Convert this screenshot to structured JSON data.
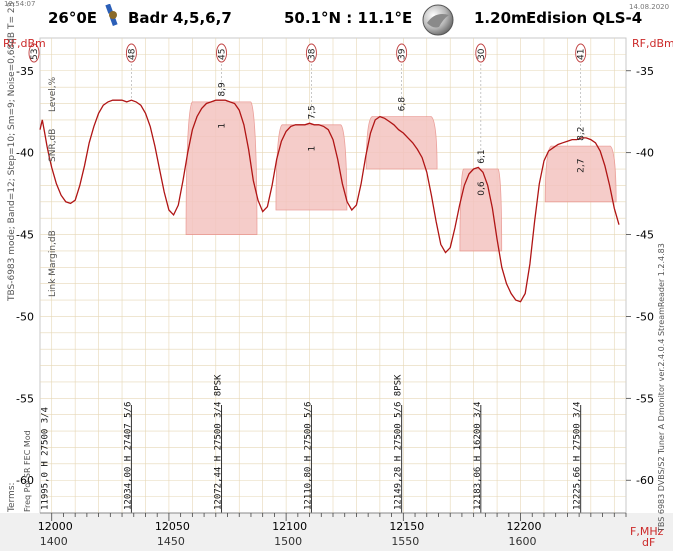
{
  "header": {
    "time": "12:54:07",
    "date": "14.08.2020",
    "orbital_position": "26°0E",
    "satellite_name": "Badr 4,5,6,7",
    "location": "50.1°N : 11.1°E",
    "dish": "1.20m",
    "lnb": "Edision QLS-4"
  },
  "chart_data": {
    "type": "line",
    "ylabel": "RF,dBm",
    "ylabel_right": "RF,dBm",
    "xlabel": "F,MHz",
    "xlabel_secondary": "dF",
    "ylim": [
      -62,
      -33
    ],
    "xlim": [
      11995,
      12245
    ],
    "y_ticks": [
      -35,
      -40,
      -45,
      -50,
      -55,
      -60
    ],
    "x_ticks": [
      12000,
      12050,
      12100,
      12150,
      12200
    ],
    "x_ticks_secondary": [
      "1400",
      "1450",
      "1500",
      "1550",
      "1600"
    ],
    "grid": true,
    "left_axis_labels": {
      "level": "Level,%",
      "snr": "SNR,dB",
      "link_margin": "Link Margin,dB",
      "scan_info": "TBS-6983 mode; Band=12; Step=10; Sm=9; Noise=0,68dB  T= 23 s",
      "terms": "Terms:",
      "columns": "Freq  Pol   SR  FEC  Mod"
    },
    "right_axis_label": "TBS 6983 DVBS/S2 Tuner A    Dmonitor  ver.2.4.0.4    StreamReader 1.2.4.83",
    "spectrum": [
      [
        11995,
        -38.6
      ],
      [
        11996,
        -38.0
      ],
      [
        11997,
        -38.8
      ],
      [
        11998,
        -39.6
      ],
      [
        11999,
        -40.3
      ],
      [
        12000,
        -40.9
      ],
      [
        12002,
        -41.9
      ],
      [
        12004,
        -42.6
      ],
      [
        12006,
        -43.0
      ],
      [
        12008,
        -43.1
      ],
      [
        12010,
        -42.9
      ],
      [
        12012,
        -42.0
      ],
      [
        12014,
        -40.8
      ],
      [
        12016,
        -39.4
      ],
      [
        12018,
        -38.4
      ],
      [
        12020,
        -37.6
      ],
      [
        12022,
        -37.1
      ],
      [
        12024,
        -36.9
      ],
      [
        12026,
        -36.8
      ],
      [
        12028,
        -36.8
      ],
      [
        12030,
        -36.8
      ],
      [
        12032,
        -36.9
      ],
      [
        12034,
        -36.8
      ],
      [
        12036,
        -36.9
      ],
      [
        12038,
        -37.1
      ],
      [
        12040,
        -37.6
      ],
      [
        12042,
        -38.4
      ],
      [
        12044,
        -39.6
      ],
      [
        12046,
        -41.0
      ],
      [
        12048,
        -42.4
      ],
      [
        12050,
        -43.5
      ],
      [
        12052,
        -43.8
      ],
      [
        12054,
        -43.2
      ],
      [
        12056,
        -41.7
      ],
      [
        12058,
        -40.0
      ],
      [
        12060,
        -38.6
      ],
      [
        12062,
        -37.8
      ],
      [
        12064,
        -37.3
      ],
      [
        12066,
        -37.0
      ],
      [
        12068,
        -36.9
      ],
      [
        12070,
        -36.8
      ],
      [
        12072,
        -36.8
      ],
      [
        12074,
        -36.8
      ],
      [
        12076,
        -36.9
      ],
      [
        12078,
        -37.0
      ],
      [
        12080,
        -37.4
      ],
      [
        12082,
        -38.3
      ],
      [
        12084,
        -39.8
      ],
      [
        12086,
        -41.7
      ],
      [
        12088,
        -42.9
      ],
      [
        12090,
        -43.6
      ],
      [
        12092,
        -43.3
      ],
      [
        12094,
        -42.0
      ],
      [
        12096,
        -40.4
      ],
      [
        12098,
        -39.3
      ],
      [
        12100,
        -38.7
      ],
      [
        12102,
        -38.4
      ],
      [
        12104,
        -38.3
      ],
      [
        12106,
        -38.3
      ],
      [
        12108,
        -38.3
      ],
      [
        12110,
        -38.2
      ],
      [
        12112,
        -38.3
      ],
      [
        12114,
        -38.3
      ],
      [
        12116,
        -38.4
      ],
      [
        12118,
        -38.6
      ],
      [
        12120,
        -39.2
      ],
      [
        12122,
        -40.4
      ],
      [
        12124,
        -41.9
      ],
      [
        12126,
        -43.0
      ],
      [
        12128,
        -43.5
      ],
      [
        12130,
        -43.2
      ],
      [
        12132,
        -41.9
      ],
      [
        12134,
        -40.2
      ],
      [
        12136,
        -38.8
      ],
      [
        12138,
        -38.0
      ],
      [
        12140,
        -37.8
      ],
      [
        12142,
        -37.9
      ],
      [
        12144,
        -38.1
      ],
      [
        12146,
        -38.3
      ],
      [
        12148,
        -38.6
      ],
      [
        12150,
        -38.8
      ],
      [
        12152,
        -39.1
      ],
      [
        12154,
        -39.4
      ],
      [
        12156,
        -39.8
      ],
      [
        12158,
        -40.3
      ],
      [
        12160,
        -41.2
      ],
      [
        12162,
        -42.6
      ],
      [
        12164,
        -44.2
      ],
      [
        12166,
        -45.6
      ],
      [
        12168,
        -46.1
      ],
      [
        12170,
        -45.8
      ],
      [
        12172,
        -44.6
      ],
      [
        12174,
        -43.2
      ],
      [
        12176,
        -42.0
      ],
      [
        12178,
        -41.3
      ],
      [
        12180,
        -41.0
      ],
      [
        12182,
        -40.9
      ],
      [
        12184,
        -41.2
      ],
      [
        12186,
        -42.0
      ],
      [
        12188,
        -43.4
      ],
      [
        12190,
        -45.3
      ],
      [
        12192,
        -47.0
      ],
      [
        12194,
        -48.0
      ],
      [
        12196,
        -48.6
      ],
      [
        12198,
        -49.0
      ],
      [
        12200,
        -49.1
      ],
      [
        12202,
        -48.6
      ],
      [
        12204,
        -46.8
      ],
      [
        12206,
        -44.2
      ],
      [
        12208,
        -41.9
      ],
      [
        12210,
        -40.5
      ],
      [
        12212,
        -39.9
      ],
      [
        12214,
        -39.7
      ],
      [
        12216,
        -39.5
      ],
      [
        12218,
        -39.4
      ],
      [
        12220,
        -39.3
      ],
      [
        12222,
        -39.2
      ],
      [
        12224,
        -39.2
      ],
      [
        12226,
        -39.1
      ],
      [
        12228,
        -39.1
      ],
      [
        12230,
        -39.2
      ],
      [
        12232,
        -39.4
      ],
      [
        12234,
        -39.9
      ],
      [
        12236,
        -40.8
      ],
      [
        12238,
        -42.0
      ],
      [
        12240,
        -43.4
      ],
      [
        12242,
        -44.4
      ]
    ],
    "transponders": [
      {
        "freq": 12034.0,
        "sr": 27407,
        "low": -43.5,
        "high": -36.9,
        "shaded": false,
        "circle_left": "48",
        "circle_right": "",
        "snr": "",
        "margin": "",
        "label": "12034,00   H   27407   5/6"
      },
      {
        "freq": 12072.44,
        "sr": 27500,
        "low": -45.0,
        "high": -36.7,
        "shaded": true,
        "circle_left": "45",
        "circle_right": "",
        "snr": "8,9",
        "margin": "1",
        "label": "12072,44   H   27500   3/4   8PSK"
      },
      {
        "freq": 12110.8,
        "sr": 27500,
        "low": -43.5,
        "high": -38.1,
        "shaded": true,
        "circle_left": "38",
        "circle_right": "",
        "snr": "7,5",
        "margin": "1",
        "label": "12110,80   H   27500   5/6"
      },
      {
        "freq": 12149.28,
        "sr": 27500,
        "low": -41.0,
        "high": -37.6,
        "shaded": true,
        "circle_left": "39",
        "circle_right": "",
        "snr": "6,8",
        "margin": "",
        "label": "12149,28   H   27500   5/6   8PSK"
      },
      {
        "freq": 12183.06,
        "sr": 16200,
        "low": -46.0,
        "high": -40.8,
        "shaded": true,
        "circle_left": "30",
        "circle_right": "",
        "snr": "6,1",
        "margin": "0,6",
        "label": "12183,06   H   16200   3/4"
      },
      {
        "freq": 12225.66,
        "sr": 27500,
        "low": -43.0,
        "high": -39.4,
        "shaded": true,
        "circle_left": "41",
        "circle_right": "",
        "snr": "8,2",
        "margin": "2,7",
        "label": "12225,66   H   27500   3/4"
      }
    ],
    "edge_label": "11995,0   H   27500   3/4",
    "edge_circle": "53"
  },
  "colors": {
    "trace": "#b01515",
    "band_fill": "#f4c4c0",
    "band_line": "#e8908a",
    "grid": "#e6d7b6",
    "axis_text": "#cc2a2a",
    "scale_text": "#000000",
    "bottom_strip": "#f0f0f0"
  }
}
